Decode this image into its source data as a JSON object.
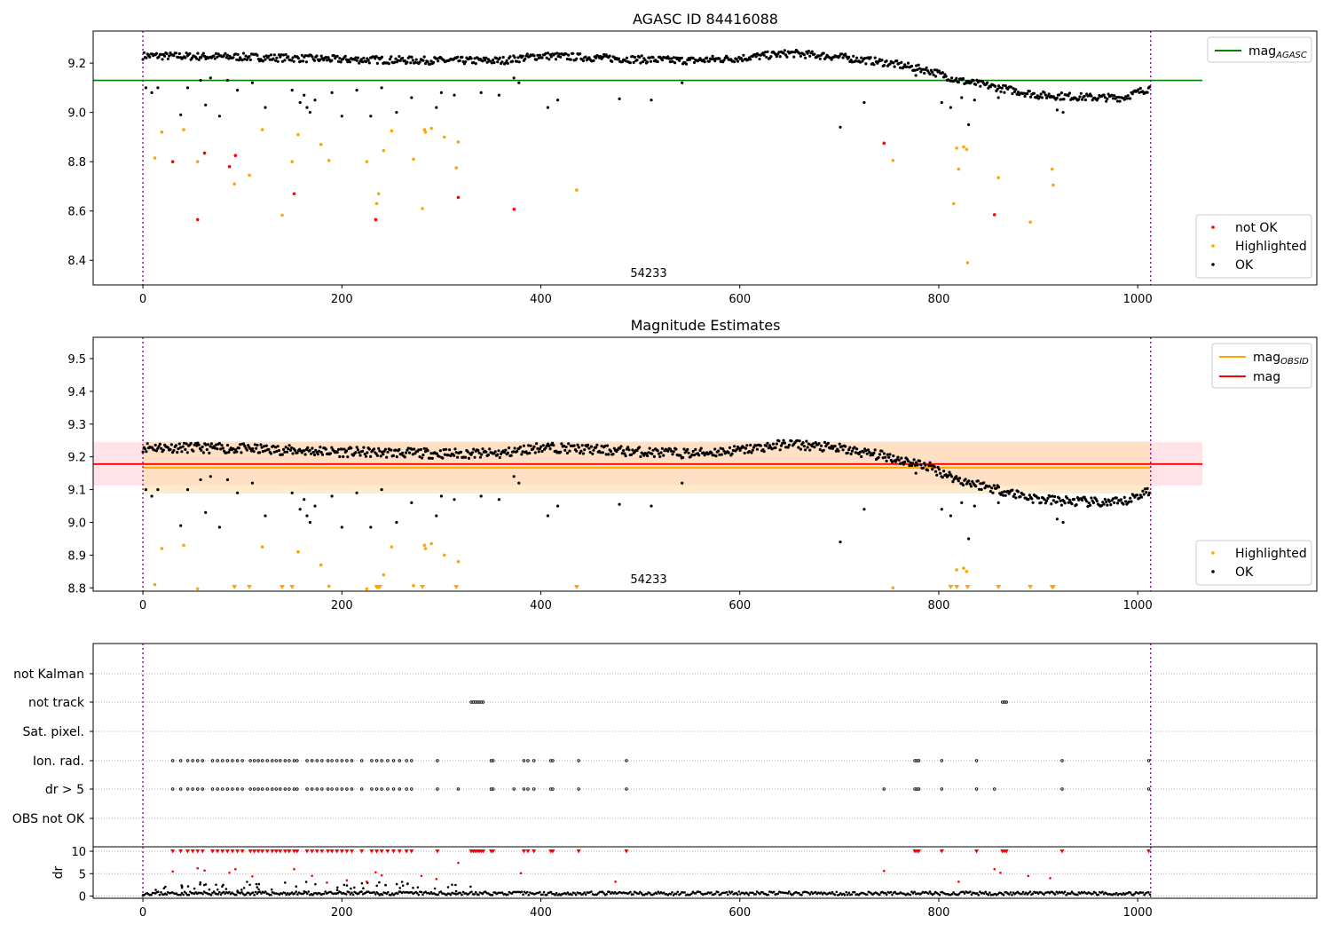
{
  "chart_data": [
    {
      "id": "agasc",
      "type": "scatter",
      "title": "AGASC ID 84416088",
      "ylim": [
        8.3,
        9.33
      ],
      "xlim": [
        -50,
        1180
      ],
      "x_ticks": [
        0,
        200,
        400,
        600,
        800,
        1000
      ],
      "y_ticks": [
        8.4,
        8.6,
        8.8,
        9.0,
        9.2
      ],
      "y_tick_labels": [
        "8.4",
        "8.6",
        "8.8",
        "9.0",
        "9.2"
      ],
      "obsid_label": "54233",
      "obsid_bounds": [
        0,
        1013
      ],
      "reference_line": {
        "name": "mag",
        "subscript": "AGASC",
        "value": 9.13,
        "x_range": [
          -50,
          1065
        ],
        "color": "#008000"
      },
      "legend_lines": [
        {
          "name": "mag",
          "subscript": "AGASC",
          "color": "#008000"
        }
      ],
      "legend_markers": [
        {
          "name": "not OK",
          "color": "#ff0000"
        },
        {
          "name": "Highlighted",
          "color": "#ffa500"
        },
        {
          "name": "OK",
          "color": "#000000"
        }
      ],
      "series": [
        {
          "name": "not OK",
          "color": "#ff0000",
          "points": [
            [
              30,
              8.8
            ],
            [
              55,
              8.565
            ],
            [
              62,
              8.835
            ],
            [
              87,
              8.78
            ],
            [
              93,
              8.825
            ],
            [
              152,
              8.67
            ],
            [
              234,
              8.565
            ],
            [
              317,
              8.655
            ],
            [
              373,
              8.607
            ],
            [
              745,
              8.875
            ],
            [
              856,
              8.585
            ]
          ]
        },
        {
          "name": "Highlighted",
          "color": "#ffa500",
          "points": [
            [
              12,
              8.815
            ],
            [
              19,
              8.92
            ],
            [
              41,
              8.93
            ],
            [
              55,
              8.8
            ],
            [
              92,
              8.71
            ],
            [
              107,
              8.745
            ],
            [
              120,
              8.93
            ],
            [
              140,
              8.583
            ],
            [
              150,
              8.8
            ],
            [
              156,
              8.91
            ],
            [
              179,
              8.87
            ],
            [
              187,
              8.805
            ],
            [
              225,
              8.8
            ],
            [
              235,
              8.63
            ],
            [
              237,
              8.67
            ],
            [
              242,
              8.845
            ],
            [
              250,
              8.925
            ],
            [
              272,
              8.81
            ],
            [
              281,
              8.61
            ],
            [
              283,
              8.93
            ],
            [
              284,
              8.92
            ],
            [
              290,
              8.935
            ],
            [
              303,
              8.9
            ],
            [
              315,
              8.775
            ],
            [
              317,
              8.88
            ],
            [
              436,
              8.685
            ],
            [
              754,
              8.805
            ],
            [
              815,
              8.63
            ],
            [
              818,
              8.855
            ],
            [
              820,
              8.77
            ],
            [
              825,
              8.86
            ],
            [
              828,
              8.85
            ],
            [
              829,
              8.39
            ],
            [
              860,
              8.735
            ],
            [
              892,
              8.555
            ],
            [
              914,
              8.77
            ],
            [
              915,
              8.705
            ]
          ]
        }
      ],
      "ok_trend": [
        [
          0,
          9.23
        ],
        [
          100,
          9.225
        ],
        [
          200,
          9.215
        ],
        [
          300,
          9.21
        ],
        [
          360,
          9.21
        ],
        [
          400,
          9.23
        ],
        [
          500,
          9.215
        ],
        [
          550,
          9.21
        ],
        [
          600,
          9.22
        ],
        [
          650,
          9.24
        ],
        [
          700,
          9.225
        ],
        [
          750,
          9.2
        ],
        [
          790,
          9.17
        ],
        [
          820,
          9.13
        ],
        [
          860,
          9.1
        ],
        [
          900,
          9.07
        ],
        [
          960,
          9.06
        ],
        [
          985,
          9.06
        ],
        [
          1013,
          9.1
        ]
      ],
      "ok_outliers": [
        [
          3,
          9.1
        ],
        [
          9,
          9.08
        ],
        [
          15,
          9.1
        ],
        [
          38,
          8.99
        ],
        [
          45,
          9.1
        ],
        [
          58,
          9.13
        ],
        [
          63,
          9.03
        ],
        [
          68,
          9.14
        ],
        [
          77,
          8.985
        ],
        [
          85,
          9.13
        ],
        [
          95,
          9.09
        ],
        [
          110,
          9.12
        ],
        [
          123,
          9.02
        ],
        [
          150,
          9.09
        ],
        [
          158,
          9.04
        ],
        [
          162,
          9.07
        ],
        [
          165,
          9.02
        ],
        [
          168,
          9.0
        ],
        [
          173,
          9.05
        ],
        [
          190,
          9.08
        ],
        [
          200,
          8.985
        ],
        [
          215,
          9.09
        ],
        [
          229,
          8.985
        ],
        [
          240,
          9.1
        ],
        [
          255,
          9.0
        ],
        [
          270,
          9.06
        ],
        [
          295,
          9.02
        ],
        [
          300,
          9.08
        ],
        [
          313,
          9.07
        ],
        [
          340,
          9.08
        ],
        [
          358,
          9.07
        ],
        [
          373,
          9.14
        ],
        [
          378,
          9.12
        ],
        [
          407,
          9.02
        ],
        [
          417,
          9.05
        ],
        [
          479,
          9.055
        ],
        [
          511,
          9.05
        ],
        [
          542,
          9.12
        ],
        [
          701,
          8.94
        ],
        [
          725,
          9.04
        ],
        [
          777,
          9.15
        ],
        [
          803,
          9.04
        ],
        [
          812,
          9.02
        ],
        [
          823,
          9.06
        ],
        [
          830,
          8.95
        ],
        [
          836,
          9.05
        ],
        [
          860,
          9.06
        ],
        [
          919,
          9.01
        ],
        [
          925,
          9.0
        ]
      ],
      "ok_scatter_amplitude": 0.015
    },
    {
      "id": "mag_estimates",
      "type": "scatter",
      "title": "Magnitude Estimates",
      "ylim": [
        8.79,
        9.565
      ],
      "xlim": [
        -50,
        1180
      ],
      "x_ticks": [
        0,
        200,
        400,
        600,
        800,
        1000
      ],
      "y_ticks": [
        8.8,
        8.9,
        9.0,
        9.1,
        9.2,
        9.3,
        9.4,
        9.5
      ],
      "y_tick_labels": [
        "8.8",
        "8.9",
        "9.0",
        "9.1",
        "9.2",
        "9.3",
        "9.4",
        "9.5"
      ],
      "obsid_label": "54233",
      "obsid_bounds": [
        0,
        1013
      ],
      "mag_line": {
        "name": "mag",
        "value": 9.178,
        "band": [
          9.113,
          9.245
        ],
        "x_range": [
          -50,
          1065
        ],
        "color": "#ff0000",
        "band_color": "#ffc0cb"
      },
      "obsid_line": {
        "name": "mag",
        "subscript": "OBSID",
        "value": 9.167,
        "band": [
          9.088,
          9.247
        ],
        "x_range": [
          0,
          1013
        ],
        "color": "#ffa500",
        "band_color": "#ffdead"
      },
      "legend_lines": [
        {
          "name": "mag",
          "subscript": "OBSID",
          "color": "#ffa500"
        },
        {
          "name": "mag",
          "subscript": "",
          "color": "#ff0000"
        }
      ],
      "legend_markers": [
        {
          "name": "Highlighted",
          "color": "#ffa500"
        },
        {
          "name": "OK",
          "color": "#000000"
        }
      ],
      "highlighted_points": [
        [
          12,
          8.81
        ],
        [
          19,
          8.92
        ],
        [
          41,
          8.93
        ],
        [
          55,
          8.797
        ],
        [
          120,
          8.925
        ],
        [
          156,
          8.91
        ],
        [
          179,
          8.87
        ],
        [
          187,
          8.805
        ],
        [
          225,
          8.797
        ],
        [
          242,
          8.84
        ],
        [
          250,
          8.925
        ],
        [
          272,
          8.807
        ],
        [
          283,
          8.93
        ],
        [
          284,
          8.92
        ],
        [
          290,
          8.935
        ],
        [
          303,
          8.9
        ],
        [
          317,
          8.88
        ],
        [
          754,
          8.8
        ],
        [
          818,
          8.855
        ],
        [
          825,
          8.86
        ],
        [
          828,
          8.85
        ]
      ],
      "clipped_points_x": [
        92,
        107,
        140,
        150,
        235,
        236,
        237,
        238,
        281,
        315,
        436,
        812,
        818,
        829,
        860,
        892,
        914,
        915
      ],
      "ok_trend_ref": "agasc"
    },
    {
      "id": "flags",
      "type": "scatter",
      "title": "",
      "xlim": [
        -50,
        1180
      ],
      "x_ticks": [
        0,
        200,
        400,
        600,
        800,
        1000
      ],
      "obsid_bounds": [
        0,
        1013
      ],
      "flag_rows": [
        "not Kalman",
        "not track",
        "Sat. pixel.",
        "Ion. rad.",
        "dr > 5",
        "OBS not OK"
      ],
      "flag_points": {
        "not Kalman": [],
        "not track": [
          330,
          332,
          334,
          336,
          338,
          340,
          342,
          864,
          866,
          868
        ],
        "Sat. pixel.": [],
        "Ion. rad.": [
          30,
          38,
          45,
          50,
          55,
          60,
          70,
          75,
          80,
          85,
          90,
          95,
          100,
          108,
          112,
          116,
          120,
          125,
          130,
          134,
          138,
          143,
          147,
          152,
          155,
          165,
          170,
          175,
          180,
          186,
          190,
          195,
          200,
          205,
          210,
          220,
          230,
          235,
          240,
          246,
          252,
          258,
          265,
          270,
          296,
          350,
          352,
          383,
          387,
          393,
          410,
          412,
          438,
          486,
          776,
          778,
          780,
          803,
          838,
          924,
          1011
        ],
        "dr > 5": [
          30,
          38,
          45,
          50,
          55,
          60,
          70,
          75,
          80,
          85,
          90,
          95,
          100,
          108,
          112,
          116,
          120,
          125,
          130,
          134,
          138,
          143,
          147,
          152,
          155,
          165,
          170,
          175,
          180,
          186,
          190,
          195,
          200,
          205,
          210,
          220,
          230,
          235,
          240,
          246,
          252,
          258,
          265,
          270,
          296,
          317,
          350,
          352,
          373,
          383,
          387,
          393,
          410,
          412,
          438,
          486,
          745,
          776,
          778,
          780,
          803,
          838,
          856,
          924,
          1011
        ],
        "OBS not OK": []
      },
      "dr_panel": {
        "ylabel": "dr",
        "ylim": [
          -0.5,
          11
        ],
        "y_ticks": [
          0,
          5,
          10
        ],
        "y_tick_labels": [
          "0",
          "5",
          "10"
        ],
        "clip_value": 10,
        "clipped_x": [
          30,
          38,
          45,
          50,
          55,
          60,
          70,
          75,
          80,
          85,
          90,
          95,
          100,
          108,
          112,
          116,
          120,
          125,
          130,
          134,
          138,
          143,
          147,
          152,
          155,
          165,
          170,
          175,
          180,
          186,
          190,
          195,
          200,
          205,
          210,
          220,
          230,
          235,
          240,
          246,
          252,
          258,
          265,
          270,
          296,
          330,
          332,
          334,
          336,
          338,
          340,
          342,
          350,
          352,
          383,
          387,
          393,
          410,
          412,
          438,
          486,
          776,
          778,
          780,
          803,
          838,
          864,
          866,
          868,
          924,
          1011
        ],
        "red_points": [
          [
            30,
            5.5
          ],
          [
            55,
            6.2
          ],
          [
            62,
            5.7
          ],
          [
            87,
            5.2
          ],
          [
            93,
            6.0
          ],
          [
            110,
            4.4
          ],
          [
            152,
            6.0
          ],
          [
            170,
            4.5
          ],
          [
            185,
            3.0
          ],
          [
            205,
            3.5
          ],
          [
            225,
            3.2
          ],
          [
            234,
            5.3
          ],
          [
            240,
            4.6
          ],
          [
            280,
            4.5
          ],
          [
            295,
            3.8
          ],
          [
            317,
            7.4
          ],
          [
            380,
            5.1
          ],
          [
            475,
            3.2
          ],
          [
            745,
            5.6
          ],
          [
            820,
            3.2
          ],
          [
            856,
            6.0
          ],
          [
            862,
            5.2
          ],
          [
            890,
            4.5
          ],
          [
            912,
            4.0
          ]
        ],
        "black_level": 0.7
      }
    }
  ]
}
